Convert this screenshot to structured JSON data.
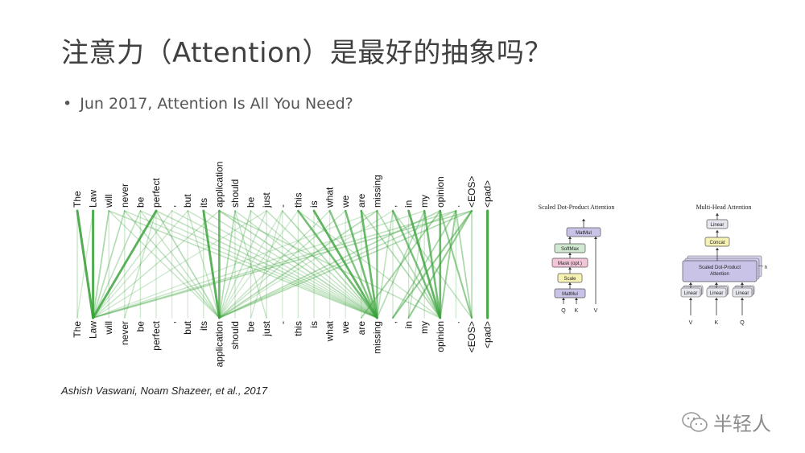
{
  "slide": {
    "title": "注意力（Attention）是最好的抽象吗？",
    "bullet_marker": "•",
    "bullet": "Jun 2017, Attention Is All You Need?",
    "citation": "Ashish Vaswani, Noam Shazeer, et al., 2017",
    "watermark": "半轻人"
  },
  "attention_viz": {
    "tokens": [
      "The",
      "Law",
      "will",
      "never",
      "be",
      "perfect",
      ",",
      "but",
      "its",
      "application",
      "should",
      "be",
      "just",
      "-",
      "this",
      "is",
      "what",
      "we",
      "are",
      "missing",
      ",",
      "in",
      "my",
      "opinion",
      ".",
      "<EOS>",
      "<pad>"
    ],
    "edge_color": "#3aa33a",
    "edges": [
      {
        "from": 0,
        "to": 1,
        "weight": 0.9
      },
      {
        "from": 1,
        "to": 1,
        "weight": 0.9
      },
      {
        "from": 5,
        "to": 1,
        "weight": 0.85
      },
      {
        "from": 2,
        "to": 1,
        "weight": 0.35
      },
      {
        "from": 3,
        "to": 1,
        "weight": 0.3
      },
      {
        "from": 4,
        "to": 1,
        "weight": 0.25
      },
      {
        "from": 6,
        "to": 1,
        "weight": 0.2
      },
      {
        "from": 7,
        "to": 1,
        "weight": 0.15
      },
      {
        "from": 9,
        "to": 1,
        "weight": 0.2
      },
      {
        "from": 12,
        "to": 1,
        "weight": 0.15
      },
      {
        "from": 25,
        "to": 1,
        "weight": 0.3
      },
      {
        "from": 24,
        "to": 1,
        "weight": 0.25
      },
      {
        "from": 22,
        "to": 1,
        "weight": 0.2
      },
      {
        "from": 19,
        "to": 1,
        "weight": 0.15
      },
      {
        "from": 0,
        "to": 0,
        "weight": 0.2
      },
      {
        "from": 2,
        "to": 2,
        "weight": 0.15
      },
      {
        "from": 3,
        "to": 3,
        "weight": 0.15
      },
      {
        "from": 4,
        "to": 4,
        "weight": 0.15
      },
      {
        "from": 9,
        "to": 9,
        "weight": 0.75
      },
      {
        "from": 8,
        "to": 9,
        "weight": 0.85
      },
      {
        "from": 5,
        "to": 9,
        "weight": 0.3
      },
      {
        "from": 3,
        "to": 9,
        "weight": 0.25
      },
      {
        "from": 2,
        "to": 9,
        "weight": 0.2
      },
      {
        "from": 4,
        "to": 9,
        "weight": 0.2
      },
      {
        "from": 7,
        "to": 9,
        "weight": 0.2
      },
      {
        "from": 10,
        "to": 9,
        "weight": 0.3
      },
      {
        "from": 11,
        "to": 9,
        "weight": 0.25
      },
      {
        "from": 12,
        "to": 9,
        "weight": 0.2
      },
      {
        "from": 13,
        "to": 9,
        "weight": 0.15
      },
      {
        "from": 14,
        "to": 9,
        "weight": 0.15
      },
      {
        "from": 16,
        "to": 9,
        "weight": 0.2
      },
      {
        "from": 17,
        "to": 9,
        "weight": 0.2
      },
      {
        "from": 19,
        "to": 9,
        "weight": 0.3
      },
      {
        "from": 20,
        "to": 9,
        "weight": 0.15
      },
      {
        "from": 23,
        "to": 9,
        "weight": 0.3
      },
      {
        "from": 24,
        "to": 9,
        "weight": 0.25
      },
      {
        "from": 25,
        "to": 9,
        "weight": 0.3
      },
      {
        "from": 5,
        "to": 5,
        "weight": 0.15
      },
      {
        "from": 6,
        "to": 6,
        "weight": 0.12
      },
      {
        "from": 7,
        "to": 7,
        "weight": 0.12
      },
      {
        "from": 8,
        "to": 8,
        "weight": 0.15
      },
      {
        "from": 10,
        "to": 10,
        "weight": 0.15
      },
      {
        "from": 11,
        "to": 11,
        "weight": 0.15
      },
      {
        "from": 12,
        "to": 12,
        "weight": 0.15
      },
      {
        "from": 13,
        "to": 13,
        "weight": 0.12
      },
      {
        "from": 14,
        "to": 19,
        "weight": 0.7
      },
      {
        "from": 15,
        "to": 19,
        "weight": 0.8
      },
      {
        "from": 16,
        "to": 19,
        "weight": 0.6
      },
      {
        "from": 17,
        "to": 19,
        "weight": 0.7
      },
      {
        "from": 18,
        "to": 19,
        "weight": 0.75
      },
      {
        "from": 19,
        "to": 19,
        "weight": 0.6
      },
      {
        "from": 13,
        "to": 19,
        "weight": 0.3
      },
      {
        "from": 12,
        "to": 19,
        "weight": 0.25
      },
      {
        "from": 11,
        "to": 19,
        "weight": 0.2
      },
      {
        "from": 10,
        "to": 19,
        "weight": 0.2
      },
      {
        "from": 9,
        "to": 19,
        "weight": 0.3
      },
      {
        "from": 8,
        "to": 19,
        "weight": 0.2
      },
      {
        "from": 7,
        "to": 19,
        "weight": 0.2
      },
      {
        "from": 6,
        "to": 19,
        "weight": 0.2
      },
      {
        "from": 5,
        "to": 19,
        "weight": 0.25
      },
      {
        "from": 4,
        "to": 19,
        "weight": 0.2
      },
      {
        "from": 3,
        "to": 19,
        "weight": 0.2
      },
      {
        "from": 2,
        "to": 19,
        "weight": 0.25
      },
      {
        "from": 20,
        "to": 19,
        "weight": 0.25
      },
      {
        "from": 22,
        "to": 19,
        "weight": 0.3
      },
      {
        "from": 14,
        "to": 14,
        "weight": 0.15
      },
      {
        "from": 15,
        "to": 15,
        "weight": 0.15
      },
      {
        "from": 16,
        "to": 16,
        "weight": 0.12
      },
      {
        "from": 17,
        "to": 17,
        "weight": 0.12
      },
      {
        "from": 18,
        "to": 18,
        "weight": 0.12
      },
      {
        "from": 20,
        "to": 23,
        "weight": 0.65
      },
      {
        "from": 21,
        "to": 23,
        "weight": 0.8
      },
      {
        "from": 22,
        "to": 23,
        "weight": 0.7
      },
      {
        "from": 23,
        "to": 23,
        "weight": 0.75
      },
      {
        "from": 24,
        "to": 23,
        "weight": 0.45
      },
      {
        "from": 19,
        "to": 23,
        "weight": 0.3
      },
      {
        "from": 18,
        "to": 23,
        "weight": 0.3
      },
      {
        "from": 14,
        "to": 23,
        "weight": 0.2
      },
      {
        "from": 9,
        "to": 23,
        "weight": 0.25
      },
      {
        "from": 23,
        "to": 25,
        "weight": 0.5
      },
      {
        "from": 24,
        "to": 25,
        "weight": 0.35
      },
      {
        "from": 25,
        "to": 25,
        "weight": 0.3
      },
      {
        "from": 20,
        "to": 25,
        "weight": 0.25
      },
      {
        "from": 26,
        "to": 26,
        "weight": 0.95
      },
      {
        "from": 25,
        "to": 21,
        "weight": 0.5
      },
      {
        "from": 25,
        "to": 20,
        "weight": 0.5
      },
      {
        "from": 24,
        "to": 20,
        "weight": 0.35
      },
      {
        "from": 23,
        "to": 18,
        "weight": 0.4
      },
      {
        "from": 22,
        "to": 21,
        "weight": 0.2
      },
      {
        "from": 21,
        "to": 21,
        "weight": 0.15
      },
      {
        "from": 20,
        "to": 20,
        "weight": 0.15
      },
      {
        "from": 22,
        "to": 22,
        "weight": 0.15
      },
      {
        "from": 24,
        "to": 24,
        "weight": 0.15
      },
      {
        "from": 1,
        "to": 0,
        "weight": 0.15
      },
      {
        "from": 5,
        "to": 3,
        "weight": 0.2
      },
      {
        "from": 10,
        "to": 12,
        "weight": 0.2
      },
      {
        "from": 13,
        "to": 11,
        "weight": 0.15
      }
    ]
  },
  "scaled_dot_product": {
    "title": "Scaled Dot-Product Attention",
    "blocks": [
      {
        "label": "MatMul",
        "fill": "#c9c3e8"
      },
      {
        "label": "SoftMax",
        "fill": "#cfe8cf"
      },
      {
        "label": "Mask (opt.)",
        "fill": "#f2c5d8"
      },
      {
        "label": "Scale",
        "fill": "#f6f2b3"
      },
      {
        "label": "MatMul",
        "fill": "#c9c3e8"
      }
    ],
    "inputs": [
      "Q",
      "K",
      "V"
    ]
  },
  "multi_head": {
    "title": "Multi-Head Attention",
    "blocks": [
      {
        "label": "Linear",
        "fill": "#e6e6ee"
      },
      {
        "label": "Concat",
        "fill": "#f6f2b3"
      }
    ],
    "attention_block": {
      "label_line1": "Scaled Dot-Product",
      "label_line2": "Attention",
      "fill": "#c9c3e8"
    },
    "head_symbol": "h",
    "linear_label": "Linear",
    "linear_fill": "#e6e6ee",
    "inputs": [
      "V",
      "K",
      "Q"
    ]
  }
}
